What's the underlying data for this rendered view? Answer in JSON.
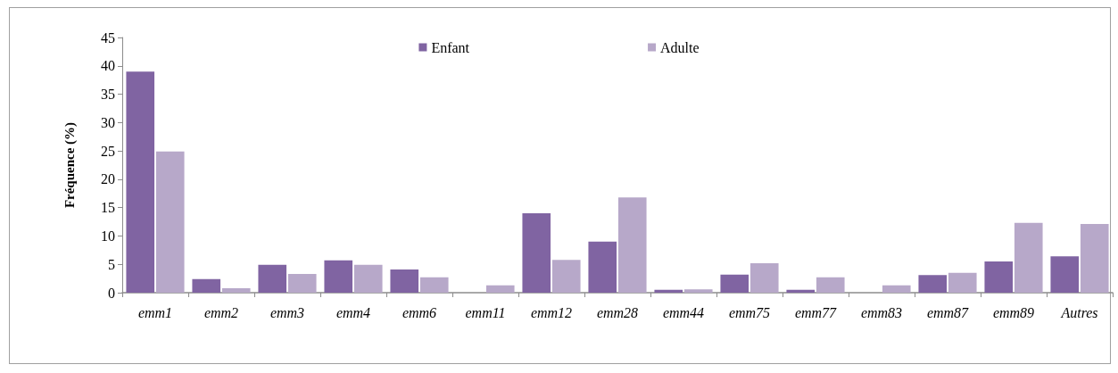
{
  "chart_data": {
    "type": "bar",
    "ylabel": "Fréquence (%)",
    "categories": [
      "emm1",
      "emm2",
      "emm3",
      "emm4",
      "emm6",
      "emm11",
      "emm12",
      "emm28",
      "emm44",
      "emm75",
      "emm77",
      "emm83",
      "emm87",
      "emm89",
      "Autres"
    ],
    "series": [
      {
        "name": "Enfant",
        "color": "#8064a2",
        "values": [
          39,
          2.4,
          4.9,
          5.7,
          4.1,
          0,
          14,
          9,
          0.5,
          3.2,
          0.5,
          0,
          3.1,
          5.5,
          6.4
        ]
      },
      {
        "name": "Adulte",
        "color": "#b7a8c9",
        "values": [
          24.9,
          0.8,
          3.3,
          4.9,
          2.7,
          1.3,
          5.8,
          16.8,
          0.6,
          5.2,
          2.7,
          1.3,
          3.5,
          12.3,
          12.1
        ]
      }
    ],
    "ylim": [
      0,
      45
    ],
    "yticks": [
      0,
      5,
      10,
      15,
      20,
      25,
      30,
      35,
      40,
      45
    ],
    "grid": false,
    "legend": "top"
  }
}
